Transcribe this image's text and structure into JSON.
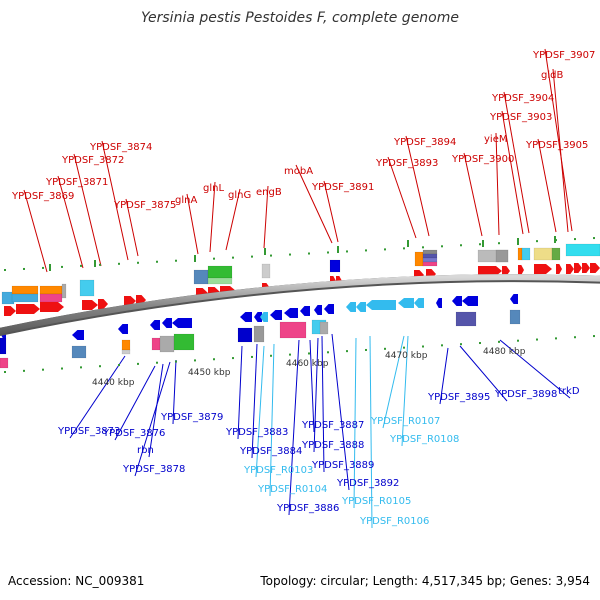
{
  "title": "Yersinia pestis Pestoides F, complete genome",
  "footer": {
    "accession": "Accession: NC_009381",
    "summary": "Topology: circular; Length: 4,517,345 bp; Genes: 3,954"
  },
  "colors": {
    "forward_label": "#cc0000",
    "reverse_label": "#0000cc",
    "rna_label": "#33bbee",
    "backbone": "#888888",
    "tick": "#339933"
  },
  "scale_labels": [
    "4440 kbp",
    "4450 kbp",
    "4460 kbp",
    "4470 kbp",
    "4480 kbp"
  ],
  "forward_labels": [
    "YPDSF_3869",
    "YPDSF_3871",
    "YPDSF_3872",
    "YPDSF_3874",
    "YPDSF_3875",
    "glnA",
    "glnL",
    "glnG",
    "engB",
    "mobA",
    "YPDSF_3891",
    "YPDSF_3893",
    "YPDSF_3894",
    "YPDSF_3900",
    "yieM",
    "YPDSF_3903",
    "YPDSF_3904",
    "YPDSF_3905",
    "gidB",
    "YPDSF_3907"
  ],
  "reverse_labels": [
    "YPDSF_3873",
    "YPDSF_3876",
    "rbn",
    "YPDSF_3878",
    "YPDSF_3879",
    "YPDSF_3883",
    "YPDSF_3884",
    "YPDSF_3886",
    "YPDSF_3887",
    "YPDSF_3888",
    "YPDSF_3889",
    "YPDSF_3892",
    "YPDSF_3895",
    "YPDSF_3898",
    "trkD"
  ],
  "rna_labels": [
    "YPDSF_R0103",
    "YPDSF_R0104",
    "YPDSF_R0105",
    "YPDSF_R0106",
    "YPDSF_R0107",
    "YPDSF_R0108"
  ]
}
